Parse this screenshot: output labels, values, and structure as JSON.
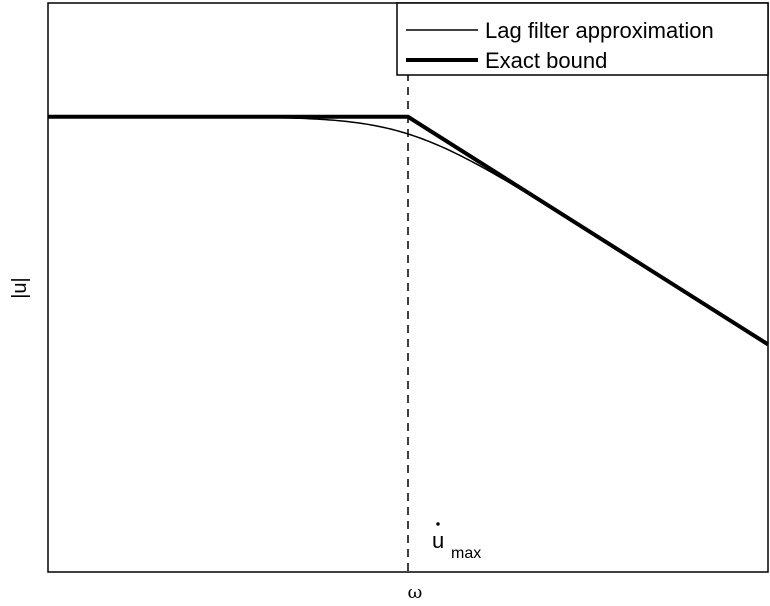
{
  "chart_data": {
    "type": "line",
    "xlabel": "ω",
    "ylabel": "|u|",
    "xscale": "log",
    "yscale": "log",
    "ticks": "none",
    "grid": false,
    "legend": "top-right",
    "xlim": [
      0.01,
      100
    ],
    "ylim": [
      0.0001,
      10
    ],
    "series": [
      {
        "name": "Lag filter approximation",
        "style": "thin-solid",
        "x": [
          0.01,
          0.03,
          0.1,
          0.2,
          0.3,
          0.5,
          0.7,
          1,
          1.5,
          2,
          3,
          5,
          10,
          20,
          30,
          50,
          100
        ],
        "y": [
          1.0,
          1.0,
          0.995,
          0.981,
          0.958,
          0.894,
          0.819,
          0.707,
          0.555,
          0.447,
          0.316,
          0.196,
          0.0995,
          0.05,
          0.033,
          0.02,
          0.01
        ]
      },
      {
        "name": "Exact bound",
        "style": "thick-solid",
        "x": [
          0.01,
          1,
          100
        ],
        "y": [
          1,
          1,
          0.01
        ]
      }
    ],
    "annotations": [
      {
        "type": "vline",
        "x": 1,
        "style": "dashed"
      },
      {
        "type": "text",
        "text": "u",
        "subscript": "max",
        "dot": true,
        "x": 1
      }
    ]
  }
}
